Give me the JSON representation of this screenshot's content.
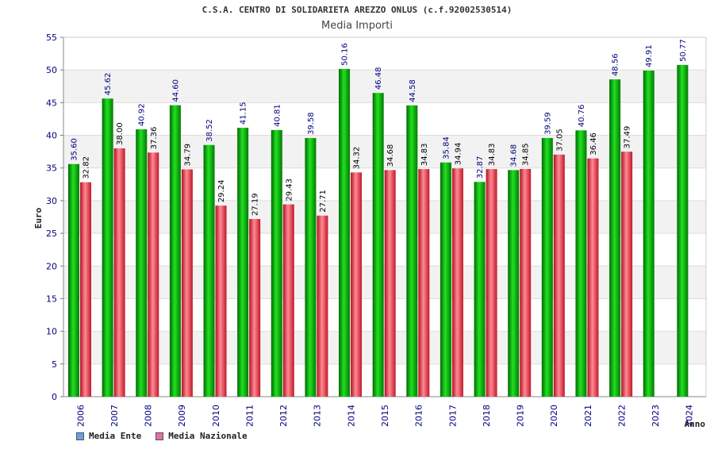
{
  "chart_data": {
    "type": "bar",
    "title": "C.S.A. CENTRO DI SOLIDARIETA AREZZO ONLUS (c.f.92002530514)",
    "subtitle": "Media Importi",
    "ylabel": "Euro",
    "xlabel": "Anno",
    "ylim": [
      0,
      55
    ],
    "yticks": [
      0,
      5,
      10,
      15,
      20,
      25,
      30,
      35,
      40,
      45,
      50,
      55
    ],
    "categories": [
      "2006",
      "2007",
      "2008",
      "2009",
      "2010",
      "2011",
      "2012",
      "2013",
      "2014",
      "2015",
      "2016",
      "2017",
      "2018",
      "2019",
      "2020",
      "2021",
      "2022",
      "2023",
      "2024"
    ],
    "series": [
      {
        "name": "Media Ente",
        "color": "#00b000",
        "values": [
          35.6,
          45.62,
          40.92,
          44.6,
          38.52,
          41.15,
          40.81,
          39.58,
          50.16,
          46.48,
          44.58,
          35.84,
          32.87,
          34.68,
          39.59,
          40.76,
          48.56,
          49.91,
          50.77
        ]
      },
      {
        "name": "Media Nazionale",
        "color": "#e02030",
        "values": [
          32.82,
          38.0,
          37.36,
          34.79,
          29.24,
          27.19,
          29.43,
          27.71,
          34.32,
          34.68,
          34.83,
          34.94,
          34.83,
          34.85,
          37.05,
          36.46,
          37.49,
          null,
          null
        ]
      }
    ],
    "legend": [
      {
        "label": "Media Ente",
        "color": "#66a0e8"
      },
      {
        "label": "Media Nazionale",
        "color": "#e070a8"
      }
    ],
    "grid": true
  }
}
